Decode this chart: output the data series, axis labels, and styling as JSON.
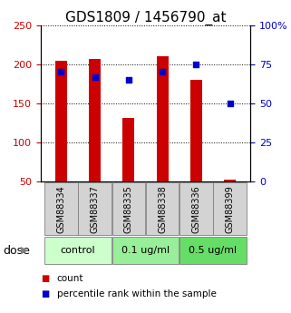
{
  "title": "GDS1809 / 1456790_at",
  "samples": [
    "GSM88334",
    "GSM88337",
    "GSM88335",
    "GSM88338",
    "GSM88336",
    "GSM88399"
  ],
  "bar_values": [
    204,
    207,
    131,
    210,
    180,
    52
  ],
  "percentile_values": [
    70,
    67,
    65,
    70,
    75,
    50
  ],
  "bar_color": "#cc0000",
  "dot_color": "#0000cc",
  "ylim_left": [
    50,
    250
  ],
  "ylim_right": [
    0,
    100
  ],
  "yticks_left": [
    50,
    100,
    150,
    200,
    250
  ],
  "yticks_right": [
    0,
    25,
    50,
    75,
    100
  ],
  "dose_groups": [
    {
      "label": "control",
      "n": 2,
      "color": "#ccffcc"
    },
    {
      "label": "0.1 ug/ml",
      "n": 2,
      "color": "#99ee99"
    },
    {
      "label": "0.5 ug/ml",
      "n": 2,
      "color": "#66dd66"
    }
  ],
  "legend_count_label": "count",
  "legend_pct_label": "percentile rank within the sample",
  "dose_label": "dose",
  "bar_width": 0.35,
  "axis_label_color_left": "#cc0000",
  "axis_label_color_right": "#0000cc",
  "bg_color": "#ffffff",
  "grid_color": "#000000",
  "sample_cell_color": "#d3d3d3",
  "dose_label_fontsize": 9,
  "title_fontsize": 11,
  "tick_fontsize": 8,
  "legend_fontsize": 7.5,
  "sample_name_fontsize": 7
}
